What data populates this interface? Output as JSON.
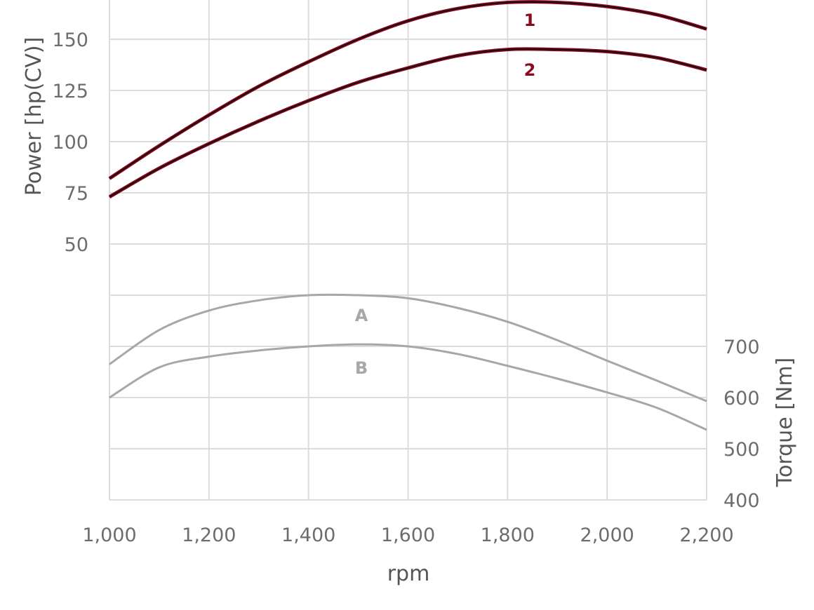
{
  "chart_data": {
    "type": "line",
    "xlabel": "rpm",
    "x_ticks": [
      "1,000",
      "1,200",
      "1,400",
      "1,600",
      "1,800",
      "2,000",
      "2,200"
    ],
    "xlim": [
      1000,
      2200
    ],
    "y_left": {
      "label": "Power [hp(CV)]",
      "ticks": [
        "50",
        "75",
        "100",
        "125",
        "150"
      ],
      "tick_values": [
        50,
        75,
        100,
        125,
        150
      ],
      "scale": [
        50,
        175
      ]
    },
    "y_right": {
      "label": "Torque [Nm]",
      "ticks": [
        "400",
        "500",
        "600",
        "700"
      ],
      "tick_values": [
        400,
        500,
        600,
        700
      ],
      "scale": [
        400,
        900
      ]
    },
    "grid": true,
    "power_series": [
      {
        "name": "1",
        "color": "#8b0a1e",
        "x": [
          1000,
          1100,
          1200,
          1300,
          1400,
          1500,
          1600,
          1700,
          1800,
          1900,
          2000,
          2100,
          2200
        ],
        "y": [
          82,
          98,
          113,
          127,
          139,
          150,
          159,
          165,
          168,
          168,
          166,
          162,
          155
        ]
      },
      {
        "name": "2",
        "color": "#8b0a1e",
        "x": [
          1000,
          1100,
          1200,
          1300,
          1400,
          1500,
          1600,
          1700,
          1800,
          1900,
          2000,
          2100,
          2200
        ],
        "y": [
          73,
          87,
          99,
          110,
          120,
          129,
          136,
          142,
          145,
          145,
          144,
          141,
          135
        ]
      }
    ],
    "torque_series": [
      {
        "name": "A",
        "color": "#a7a7a7",
        "x": [
          1000,
          1100,
          1200,
          1300,
          1400,
          1500,
          1600,
          1700,
          1800,
          1900,
          2000,
          2100,
          2200
        ],
        "y": [
          665,
          732,
          770,
          790,
          800,
          800,
          794,
          775,
          748,
          712,
          672,
          633,
          593
        ]
      },
      {
        "name": "B",
        "color": "#a7a7a7",
        "x": [
          1000,
          1100,
          1200,
          1300,
          1400,
          1500,
          1600,
          1700,
          1800,
          1900,
          2000,
          2100,
          2200
        ],
        "y": [
          600,
          659,
          680,
          692,
          700,
          704,
          700,
          685,
          662,
          637,
          610,
          580,
          537
        ]
      }
    ]
  }
}
